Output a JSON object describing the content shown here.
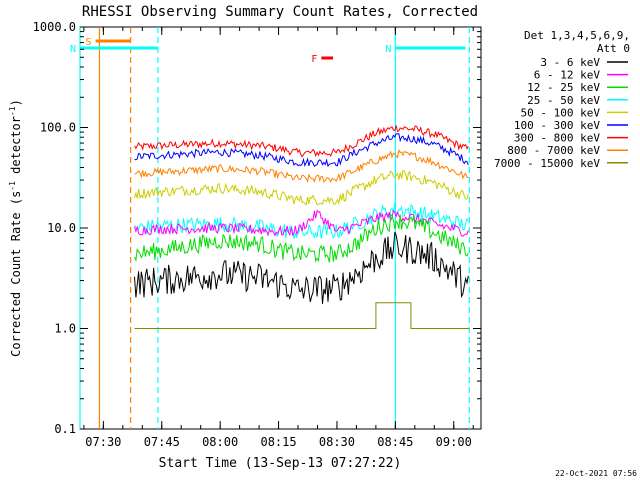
{
  "chart_data": {
    "type": "line",
    "title": "RHESSI Observing Summary Count Rates, Corrected",
    "xlabel": "Start Time (13-Sep-13 07:27:22)",
    "ylabel": "Corrected Count Rate (s",
    "ylabel_sup1": "-1",
    "ylabel_mid": " detector",
    "ylabel_sup2": "-1",
    "ylabel_end": ")",
    "yscale": "log",
    "ylim": [
      0.1,
      1000
    ],
    "xlim": [
      "07:24",
      "09:07"
    ],
    "x_ticks": [
      "07:30",
      "07:45",
      "08:00",
      "08:15",
      "08:30",
      "08:45",
      "09:00"
    ],
    "y_ticks": [
      "0.1",
      "1.0",
      "10.0",
      "100.0",
      "1000.0"
    ],
    "timestamp": "22-Oct-2021 07:56",
    "legend": {
      "position": "right",
      "header_line1": "Det 1,3,4,5,6,9,",
      "header_line2": "Att 0",
      "entries": [
        {
          "label": "3 - 6 keV",
          "color": "#000000"
        },
        {
          "label": "6 - 12 keV",
          "color": "#ff00ff"
        },
        {
          "label": "12 - 25 keV",
          "color": "#00dd00"
        },
        {
          "label": "25 - 50 keV",
          "color": "#00ffff"
        },
        {
          "label": "50 - 100 keV",
          "color": "#cccc00"
        },
        {
          "label": "100 - 300 keV",
          "color": "#0000ff"
        },
        {
          "label": "300 - 800 keV",
          "color": "#ff0000"
        },
        {
          "label": "800 - 7000 keV",
          "color": "#ff8000"
        },
        {
          "label": "7000 - 15000 keV",
          "color": "#888800"
        }
      ]
    },
    "flags": [
      {
        "label": "S",
        "color": "#ff8000",
        "start": "07:28",
        "end": "07:37"
      },
      {
        "label": "N",
        "color": "#00ffff",
        "start": "07:24",
        "end": "07:44"
      },
      {
        "label": "N",
        "color": "#00ffff",
        "start": "08:45",
        "end": "09:03"
      },
      {
        "label": "F",
        "color": "#ff0000",
        "start": "08:26",
        "end": "08:29"
      }
    ],
    "markers": [
      {
        "time": "07:24",
        "color": "#00ffff",
        "style": "solid"
      },
      {
        "time": "07:29",
        "color": "#ff8000",
        "style": "solid"
      },
      {
        "time": "07:37",
        "color": "#ff8000",
        "style": "dashed"
      },
      {
        "time": "07:44",
        "color": "#00ffff",
        "style": "dashed"
      },
      {
        "time": "08:45",
        "color": "#00ffff",
        "style": "solid"
      },
      {
        "time": "09:04",
        "color": "#00ffff",
        "style": "dashed"
      }
    ],
    "series": [
      {
        "name": "300 - 800 keV",
        "color": "#ff0000",
        "noise": 0.09,
        "x": [
          "07:38",
          "07:45",
          "08:00",
          "08:10",
          "08:15",
          "08:20",
          "08:30",
          "08:35",
          "08:40",
          "08:45",
          "08:50",
          "08:55",
          "09:00",
          "09:04"
        ],
        "y": [
          64,
          66,
          70,
          66,
          62,
          56,
          56,
          70,
          88,
          100,
          96,
          86,
          70,
          60
        ]
      },
      {
        "name": "100 - 300 keV",
        "color": "#0000ff",
        "noise": 0.09,
        "x": [
          "07:38",
          "07:45",
          "08:00",
          "08:10",
          "08:15",
          "08:20",
          "08:30",
          "08:35",
          "08:40",
          "08:45",
          "08:50",
          "08:55",
          "09:00",
          "09:04"
        ],
        "y": [
          51,
          53,
          57,
          53,
          49,
          45,
          45,
          57,
          70,
          80,
          77,
          68,
          55,
          45
        ]
      },
      {
        "name": "800 - 7000 keV",
        "color": "#ff8000",
        "noise": 0.09,
        "x": [
          "07:38",
          "07:45",
          "08:00",
          "08:10",
          "08:15",
          "08:20",
          "08:30",
          "08:35",
          "08:40",
          "08:45",
          "08:50",
          "08:55",
          "09:00",
          "09:04"
        ],
        "y": [
          35,
          36,
          39,
          37,
          34,
          31,
          31,
          38,
          47,
          55,
          52,
          45,
          37,
          31
        ]
      },
      {
        "name": "50 - 100 keV",
        "color": "#cccc00",
        "noise": 0.12,
        "x": [
          "07:38",
          "07:45",
          "08:00",
          "08:10",
          "08:15",
          "08:20",
          "08:30",
          "08:35",
          "08:40",
          "08:45",
          "08:50",
          "08:55",
          "09:00",
          "09:04"
        ],
        "y": [
          22,
          23,
          25,
          23,
          21,
          19,
          19,
          24,
          30,
          34,
          32,
          28,
          23,
          20
        ]
      },
      {
        "name": "25 - 50 keV",
        "color": "#00ffff",
        "noise": 0.18,
        "x": [
          "07:38",
          "07:45",
          "08:00",
          "08:10",
          "08:15",
          "08:20",
          "08:30",
          "08:35",
          "08:40",
          "08:45",
          "08:50",
          "08:55",
          "09:00",
          "09:04"
        ],
        "y": [
          10,
          10.5,
          11,
          10.2,
          9.5,
          9,
          9.2,
          11,
          13.5,
          15.5,
          14.5,
          13,
          11.5,
          10.5
        ]
      },
      {
        "name": "6 - 12 keV",
        "color": "#ff00ff",
        "noise": 0.12,
        "x": [
          "07:38",
          "07:45",
          "08:00",
          "08:10",
          "08:15",
          "08:20",
          "08:25",
          "08:30",
          "08:35",
          "08:40",
          "08:45",
          "08:50",
          "08:55",
          "09:00",
          "09:04"
        ],
        "y": [
          9.5,
          9.8,
          10,
          9.6,
          9.2,
          9.5,
          14,
          9.2,
          10.5,
          12.5,
          13.5,
          12.5,
          11,
          9.8,
          9
        ]
      },
      {
        "name": "12 - 25 keV",
        "color": "#00dd00",
        "noise": 0.2,
        "x": [
          "07:38",
          "07:45",
          "08:00",
          "08:10",
          "08:15",
          "08:20",
          "08:30",
          "08:35",
          "08:40",
          "08:45",
          "08:50",
          "08:55",
          "09:00",
          "09:04"
        ],
        "y": [
          5.5,
          6,
          7.5,
          7,
          6,
          5.5,
          5.5,
          7,
          10,
          12,
          11,
          9,
          7,
          6
        ]
      },
      {
        "name": "3 - 6 keV",
        "color": "#000000",
        "noise": 0.35,
        "x": [
          "07:38",
          "07:45",
          "08:00",
          "08:10",
          "08:15",
          "08:20",
          "08:30",
          "08:35",
          "08:40",
          "08:45",
          "08:50",
          "08:55",
          "09:00",
          "09:04"
        ],
        "y": [
          2.8,
          3,
          3.5,
          3.2,
          2.8,
          2.4,
          2.5,
          3.5,
          5,
          6.5,
          6,
          5,
          3.5,
          2.5
        ]
      },
      {
        "name": "7000 - 15000 keV",
        "color": "#888800",
        "noise": 0.0,
        "x": [
          "07:38",
          "08:39",
          "08:40",
          "08:48",
          "08:49",
          "09:04"
        ],
        "y": [
          1.0,
          1.0,
          1.8,
          1.8,
          1.0,
          1.0
        ]
      }
    ]
  }
}
